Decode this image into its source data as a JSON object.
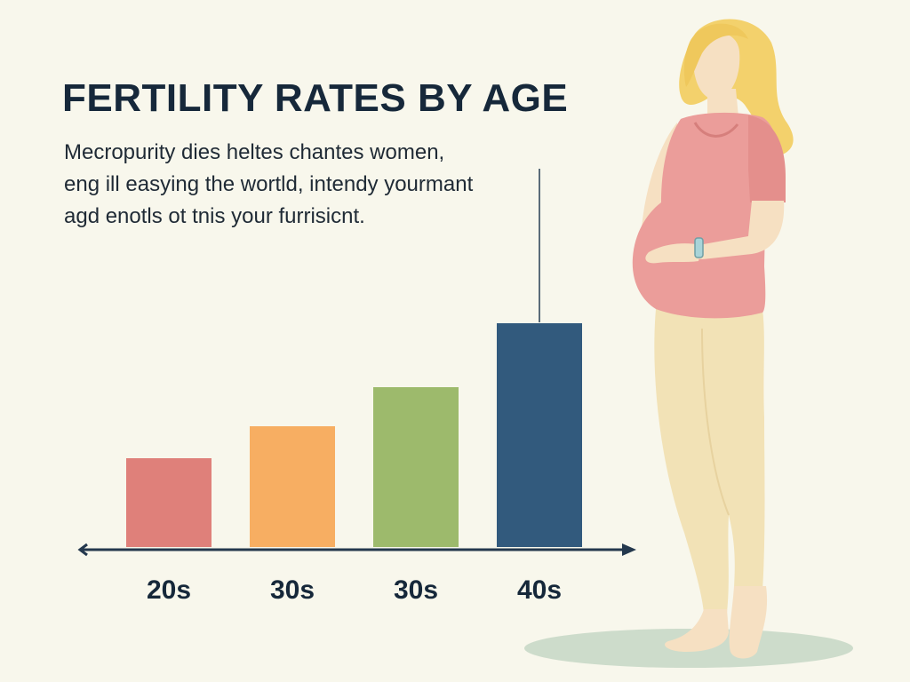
{
  "header": {
    "title": "FERTILITY RATES BY AGE",
    "description_lines": [
      "Mecropurity dies heltes chantes women,",
      "eng ill easying the wortld, intendy yourmant",
      "agd enotls ot tnis your furrisicnt."
    ]
  },
  "chart_data": {
    "type": "bar",
    "categories": [
      "20s",
      "30s",
      "30s",
      "40s"
    ],
    "values": [
      100,
      136,
      180,
      252
    ],
    "colors": [
      "#df807a",
      "#f7ae62",
      "#9dba6c",
      "#325a7d"
    ],
    "ylim": [
      0,
      330
    ],
    "title": "FERTILITY RATES BY AGE",
    "xlabel": "",
    "ylabel": "",
    "grid": false
  },
  "colors": {
    "background": "#f8f7ec",
    "axis": "#24384d",
    "text": "#16283a"
  },
  "illustration": {
    "subject": "pregnant-woman-icon"
  }
}
